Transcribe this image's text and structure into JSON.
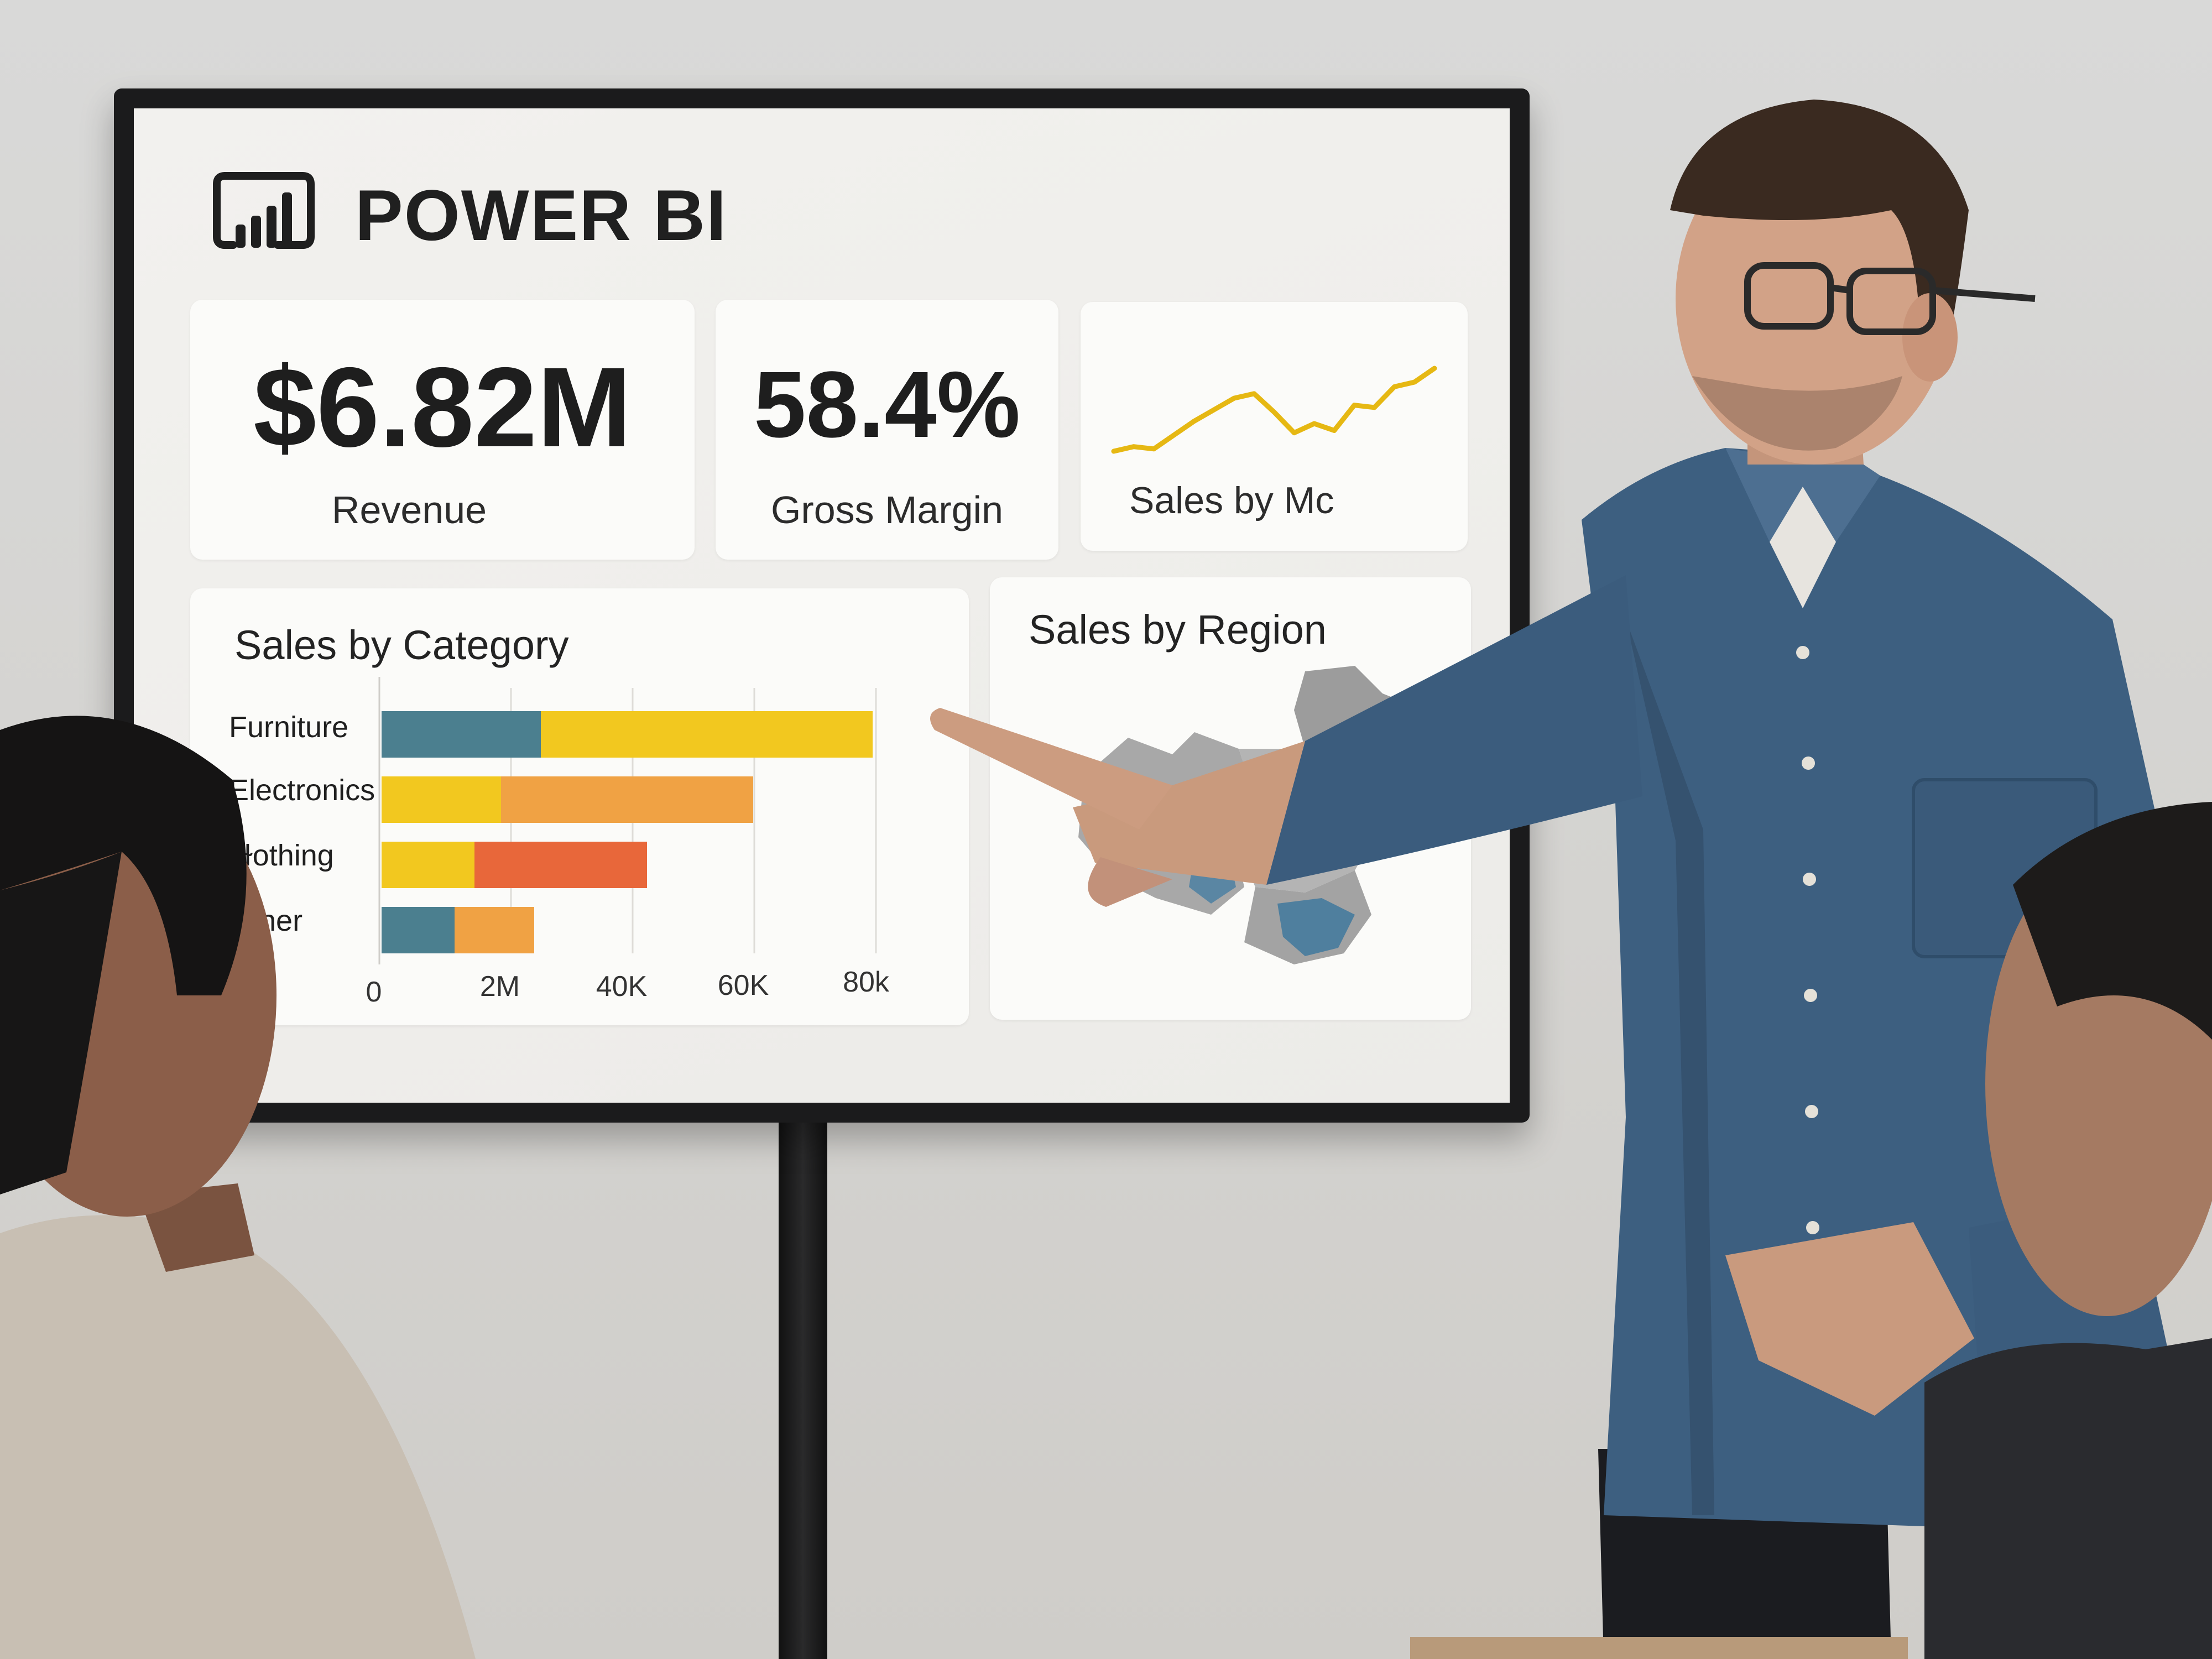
{
  "app": {
    "title": "POWER BI"
  },
  "kpis": [
    {
      "value": "$6.82M",
      "label": "Revenue"
    },
    {
      "value": "58.4%",
      "label": "Gross Margin"
    },
    {
      "label": "Sales by Mc"
    }
  ],
  "panels": {
    "category_title": "Sales by Category",
    "region_title": "Sales by Region"
  },
  "colors": {
    "teal": "#4b7f8f",
    "yellow": "#f2c81f",
    "orange": "#f0a244",
    "red": "#e8673a",
    "sparkline": "#e6b813"
  },
  "chart_data": [
    {
      "type": "bar",
      "orientation": "horizontal",
      "stacked": true,
      "title": "Sales by Category",
      "categories": [
        "Furniture",
        "Electronics",
        "ɫothing",
        "her"
      ],
      "x_tick_labels": [
        "0",
        "2M",
        "40K",
        "60K",
        "80k"
      ],
      "segments": [
        [
          {
            "color": "#4b7f8f",
            "value": 1.2
          },
          {
            "color": "#f2c81f",
            "value": 2.5
          }
        ],
        [
          {
            "color": "#f2c81f",
            "value": 0.9
          },
          {
            "color": "#f0a244",
            "value": 1.9
          }
        ],
        [
          {
            "color": "#f2c81f",
            "value": 0.7
          },
          {
            "color": "#e8673a",
            "value": 1.3
          }
        ],
        [
          {
            "color": "#4b7f8f",
            "value": 0.55
          },
          {
            "color": "#f0a244",
            "value": 0.6
          }
        ]
      ],
      "grid": true
    },
    {
      "type": "line",
      "title": "Sales by Mc",
      "values": [
        2,
        4,
        3,
        9,
        15,
        20,
        25,
        27,
        19,
        10,
        14,
        11,
        22,
        21,
        30,
        32,
        38
      ]
    }
  ]
}
